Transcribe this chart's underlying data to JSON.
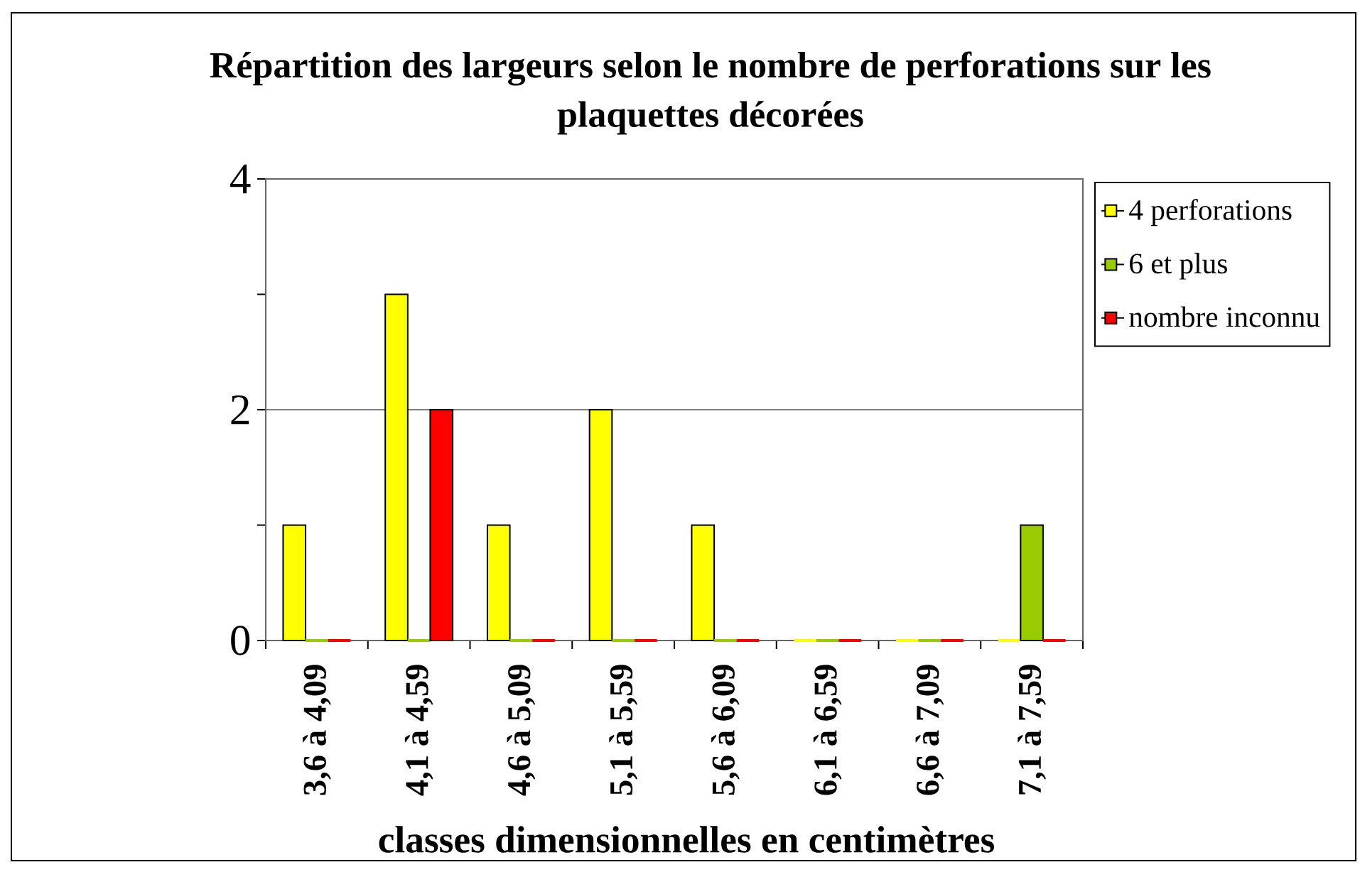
{
  "chart_data": {
    "type": "bar",
    "title": "Répartition des largeurs selon le nombre de perforations sur les plaquettes décorées",
    "xlabel": "classes dimensionnelles en centimètres",
    "categories": [
      "3,6 à 4,09",
      "4,1 à 4,59",
      "4,6 à 5,09",
      "5,1 à 5,59",
      "5,6 à 6,09",
      "6,1 à 6,59",
      "6,6 à 7,09",
      "7,1 à 7,59"
    ],
    "series": [
      {
        "name": "4 perforations",
        "color": "#ffff00",
        "values": [
          1,
          3,
          1,
          2,
          1,
          0,
          0,
          0
        ]
      },
      {
        "name": "6 et plus",
        "color": "#99cc00",
        "values": [
          0,
          0,
          0,
          0,
          0,
          0,
          0,
          1
        ]
      },
      {
        "name": "nombre inconnu",
        "color": "#ff0000",
        "values": [
          0,
          2,
          0,
          0,
          0,
          0,
          0,
          0
        ]
      }
    ],
    "ylim": [
      0,
      4
    ],
    "yticks": [
      0,
      {
        "value": 1,
        "label": null
      },
      2,
      {
        "value": 3,
        "label": null
      },
      4
    ],
    "grid": "y",
    "legend": "top right"
  }
}
